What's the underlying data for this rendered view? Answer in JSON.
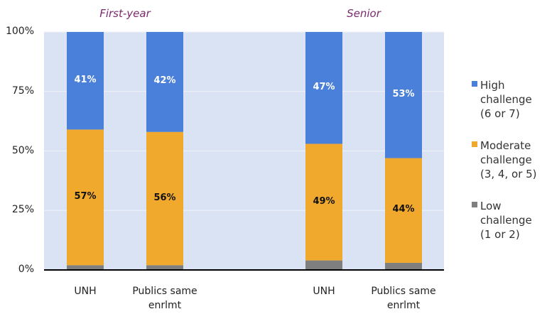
{
  "chart_data": {
    "type": "bar",
    "stacked": true,
    "groups": [
      {
        "name": "First-year",
        "categories": [
          "UNH",
          "Publics same enrlmt"
        ]
      },
      {
        "name": "Senior",
        "categories": [
          "UNH",
          "Publics same enrlmt"
        ]
      }
    ],
    "series": [
      {
        "name": "Low challenge (1 or 2)",
        "color": "#7f7f7f",
        "values": [
          2,
          2,
          4,
          3
        ]
      },
      {
        "name": "Moderate challenge (3, 4, or 5)",
        "color": "#f0a92c",
        "values": [
          57,
          56,
          49,
          44
        ],
        "value_labels": [
          "57%",
          "56%",
          "49%",
          "44%"
        ]
      },
      {
        "name": "High challenge (6 or 7)",
        "color": "#4a80d9",
        "values": [
          41,
          42,
          47,
          53
        ],
        "value_labels": [
          "41%",
          "42%",
          "47%",
          "53%"
        ]
      }
    ],
    "ylim": [
      0,
      100
    ],
    "yticks": [
      {
        "value": 0,
        "label": "0%"
      },
      {
        "value": 25,
        "label": "25%"
      },
      {
        "value": 50,
        "label": "50%"
      },
      {
        "value": 75,
        "label": "75%"
      },
      {
        "value": 100,
        "label": "100%"
      }
    ],
    "grid": true,
    "legend": "right"
  }
}
